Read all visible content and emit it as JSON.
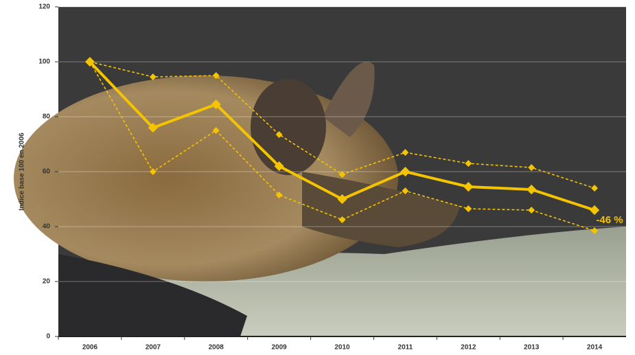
{
  "chart_data": {
    "type": "line",
    "y_label": "Indice base 100 en 2006",
    "annotation": "-46 %",
    "categories": [
      "2006",
      "2007",
      "2008",
      "2009",
      "2010",
      "2011",
      "2012",
      "2013",
      "2014"
    ],
    "series": [
      {
        "color": "#f5c400",
        "dashed": false,
        "values": [
          100,
          76,
          84.5,
          62,
          50,
          60,
          54.5,
          53.5,
          46
        ]
      },
      {
        "color": "#f5c400",
        "dashed": true,
        "values": [
          100,
          94.5,
          95,
          73.5,
          59,
          67,
          63,
          61.5,
          54
        ]
      },
      {
        "color": "#f5c400",
        "dashed": true,
        "values": [
          100,
          60,
          75,
          51.5,
          42.5,
          53,
          46.5,
          46,
          38.5
        ]
      }
    ],
    "ylim": [
      0,
      120
    ],
    "yticks": [
      0,
      20,
      40,
      60,
      80,
      100,
      120
    ],
    "grid": true
  }
}
